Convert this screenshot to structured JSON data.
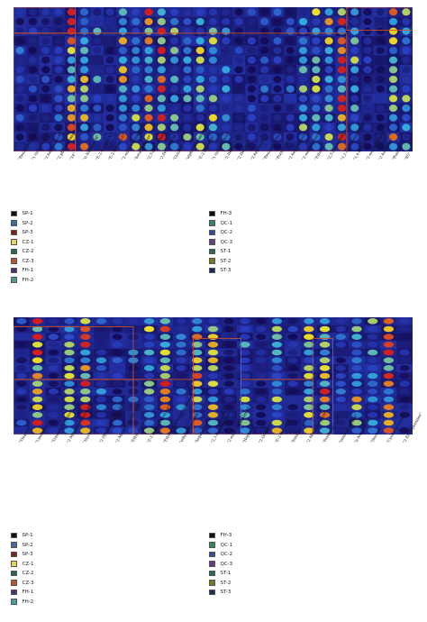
{
  "chart_data": [
    {
      "type": "heatmap",
      "samples": [
        "SP-1",
        "SP-2",
        "SP-3",
        "CZ-1",
        "CZ-2",
        "CZ-3",
        "FH-1",
        "FH-2",
        "FH-3",
        "QC-1",
        "QC-2",
        "QC-3",
        "ST-1",
        "ST-2",
        "ST-3"
      ],
      "compounds": [
        "\"Benzaldehyde-D\"",
        "\"1-Octen-3-ol-M\"",
        "\"2-heptanone-D\"",
        "\"2-phenylethanol\"",
        "\"34\"",
        "\"n-Nonanal-M\"",
        "\"E-2-Octenal-M\"",
        "\"E-2-Octenal-D\"",
        "\"2-ethyl-1-Hexanol-D\"",
        "\"beta-Ocimene\"",
        "\"2,3-octanedione\"",
        "\"2-Pentyl-furan\"",
        "\"Octanal\"",
        "\"alpha-Phellandrene\"",
        "\"E-2-heptenal\"",
        "\"1-Octen-3-ol-D\"",
        "\"3-Hexen-1-ol\"",
        "\"2-Hexanal\"",
        "\"2-heptanal\"",
        "\"Benzaldehyde-M\"",
        "\"Butyl acetate\"",
        "\"2-heptanone-M\"",
        "\"2-methylpyrazine\"",
        "\"Ethanol\"",
        "\"2,3-Butanediol\"",
        "\"1,2-Dimethoxyethane\"",
        "\"1,4-dioxane\"",
        "\"2-methylbutanal\"",
        "\"2-butanone\"",
        "\"Butanal\"",
        "\"85\""
      ],
      "highlighted_blocks": 4
    },
    {
      "type": "heatmap",
      "samples": [
        "SP-1",
        "SP-2",
        "SP-3",
        "CZ-1",
        "CZ-2",
        "CZ-3",
        "FH-1",
        "FH-2",
        "FH-3",
        "QC-1",
        "QC-2",
        "QC-3",
        "ST-1",
        "ST-2",
        "ST-3"
      ],
      "compounds": [
        "\"Thiazole\"",
        "\"Limonene\"",
        "\"Trimethylpyrazine\"",
        "\"2-Methylpropanoic acid\"",
        "\"Styrene\"",
        "\"2-Phenylacetaldehyde\"",
        "\"2-Methylbutanoic acid\"",
        "\"Ethyl Acetate\"",
        "\"Z-3-Hexenyl Acetate\"",
        "\"Ethyl 2-hydroxypropanoate\"",
        "\"ethyl propanoate\"",
        "\"heptanol\"",
        "\"2,3-Butanedione\"",
        "\"2-ethyl-1-Hexanol-M\"",
        "\"Heptanal\"",
        "\"2-Octanol\"",
        "\"E-2-Hexenal\"",
        "\"butanoic acid\"",
        "\"2-Methylpropanal\"",
        "\"Pentanoic acid\"",
        "\"isoamyl acetate\"",
        "\"n-Nonanal-D\"",
        "\"Decanal\"",
        "\"Cyclohexanone\"",
        "\"2-Ethyl pyrazine\""
      ],
      "highlighted_blocks": 6
    }
  ],
  "legend_left": [
    {
      "label": "SP-1",
      "color": "#101010"
    },
    {
      "label": "SP-2",
      "color": "#3a6ea5"
    },
    {
      "label": "SP-3",
      "color": "#8b1a1a"
    },
    {
      "label": "CZ-1",
      "color": "#e6d84a"
    },
    {
      "label": "CZ-2",
      "color": "#2a6a3a"
    },
    {
      "label": "CZ-3",
      "color": "#c8501e"
    },
    {
      "label": "FH-1",
      "color": "#5a2a7a"
    },
    {
      "label": "FH-2",
      "color": "#3aa3a0"
    }
  ],
  "legend_right": [
    {
      "label": "FH-3",
      "color": "#101010"
    },
    {
      "label": "QC-1",
      "color": "#2e8b57"
    },
    {
      "label": "QC-2",
      "color": "#2a4ea5"
    },
    {
      "label": "QC-3",
      "color": "#6a3a8a"
    },
    {
      "label": "ST-1",
      "color": "#1f6f4a"
    },
    {
      "label": "ST-2",
      "color": "#7a7a1a"
    },
    {
      "label": "ST-3",
      "color": "#1a2a6a"
    }
  ],
  "colors": {
    "low": "#1a1060",
    "mid": "#2f8fcf",
    "high": "#e8e020",
    "peak": "#d02020",
    "frame": "#c8502a"
  }
}
